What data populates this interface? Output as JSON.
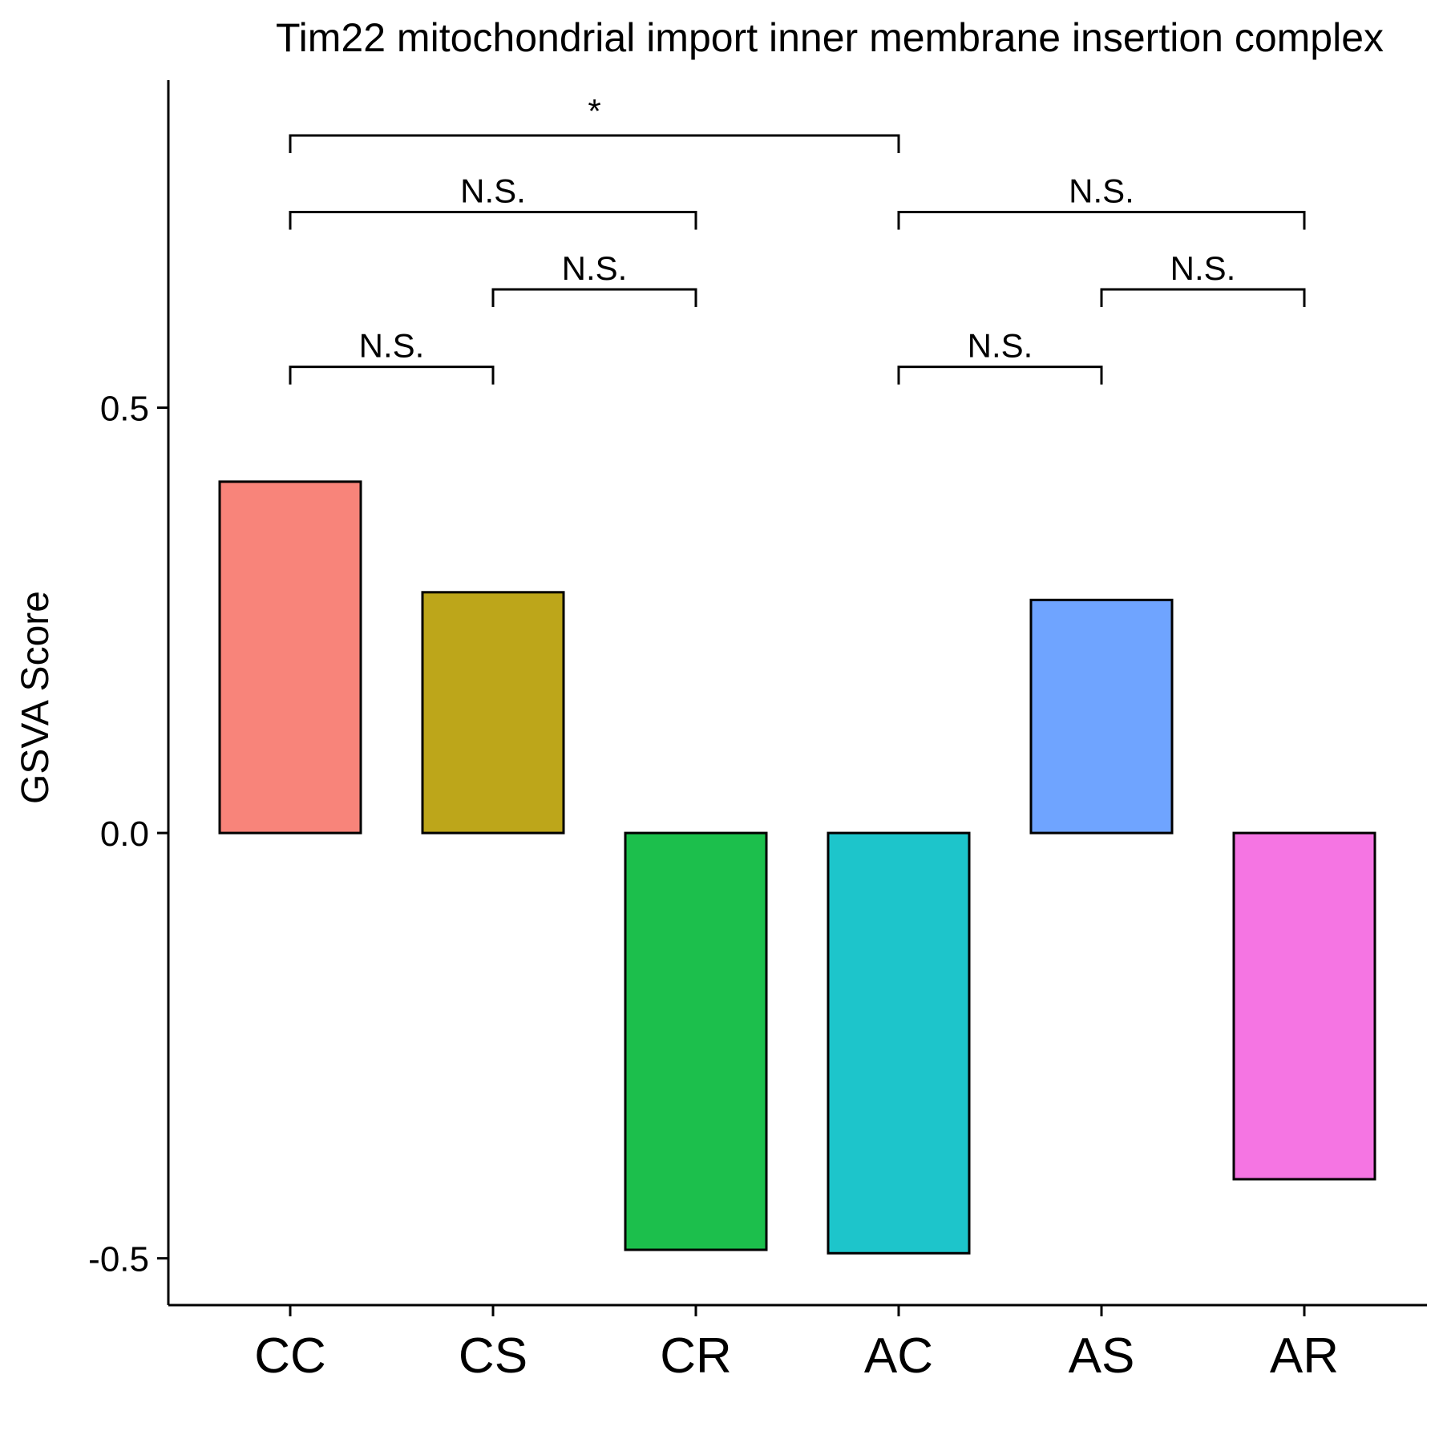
{
  "chart_data": {
    "type": "bar",
    "title": "Tim22 mitochondrial import inner membrane insertion complex",
    "xlabel": "",
    "ylabel": "GSVA Score",
    "categories": [
      "CC",
      "CS",
      "CR",
      "AC",
      "AS",
      "AR"
    ],
    "values": [
      0.413,
      0.283,
      -0.49,
      -0.494,
      0.274,
      -0.407
    ],
    "colors": [
      "#F8847A",
      "#BDA61A",
      "#1CBF4C",
      "#1DC5CB",
      "#6FA4FF",
      "#F575E3"
    ],
    "ylim": [
      -0.555,
      0.885
    ],
    "yticks": [
      {
        "value": 0.5,
        "label": "0.5"
      },
      {
        "value": 0.0,
        "label": "0.0"
      },
      {
        "value": -0.5,
        "label": "-0.5"
      }
    ],
    "grid": false,
    "legend": "none",
    "comparisons": [
      {
        "from": 0,
        "to": 1,
        "y": 0.548,
        "label": "N.S."
      },
      {
        "from": 1,
        "to": 2,
        "y": 0.639,
        "label": "N.S."
      },
      {
        "from": 0,
        "to": 2,
        "y": 0.73,
        "label": "N.S."
      },
      {
        "from": 0,
        "to": 3,
        "y": 0.82,
        "label": "*"
      },
      {
        "from": 3,
        "to": 4,
        "y": 0.548,
        "label": "N.S."
      },
      {
        "from": 4,
        "to": 5,
        "y": 0.639,
        "label": "N.S."
      },
      {
        "from": 3,
        "to": 5,
        "y": 0.73,
        "label": "N.S."
      }
    ]
  }
}
